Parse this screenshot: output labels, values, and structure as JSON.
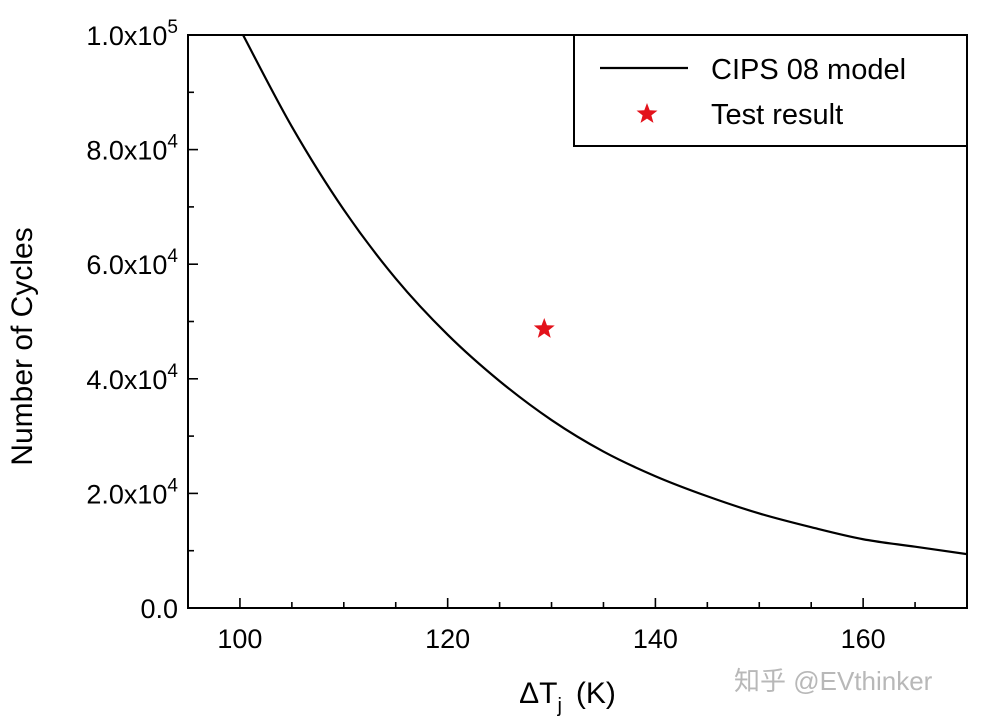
{
  "chart_data": {
    "type": "line",
    "xlabel": {
      "main": "ΔT",
      "sub": "j",
      "unit": "(K)"
    },
    "ylabel": "Number of Cycles",
    "xlim": [
      95,
      170
    ],
    "ylim": [
      0,
      100000
    ],
    "xticks": [
      100,
      120,
      140,
      160
    ],
    "yticks": [
      {
        "value": 0,
        "label": "0.0",
        "exp": ""
      },
      {
        "value": 20000,
        "label": "2.0x10",
        "exp": "4"
      },
      {
        "value": 40000,
        "label": "4.0x10",
        "exp": "4"
      },
      {
        "value": 60000,
        "label": "6.0x10",
        "exp": "4"
      },
      {
        "value": 80000,
        "label": "8.0x10",
        "exp": "4"
      },
      {
        "value": 100000,
        "label": "1.0x10",
        "exp": "5"
      }
    ],
    "grid": false,
    "legend_position": "top-right",
    "series": [
      {
        "name": "CIPS 08 model",
        "kind": "line",
        "color": "#000000",
        "x": [
          100.3,
          105,
          110,
          115,
          120,
          125,
          130,
          135,
          140,
          145,
          150,
          155,
          160,
          165,
          170
        ],
        "y": [
          100000,
          84000,
          69500,
          57500,
          47700,
          39600,
          32800,
          27300,
          23000,
          19500,
          16500,
          14100,
          12000,
          10700,
          9400
        ]
      },
      {
        "name": "Test result",
        "kind": "marker",
        "marker": "star",
        "color": "#e3121b",
        "x": [
          129.3
        ],
        "y": [
          48700
        ]
      }
    ]
  },
  "watermark": "知乎 @EVthinker"
}
